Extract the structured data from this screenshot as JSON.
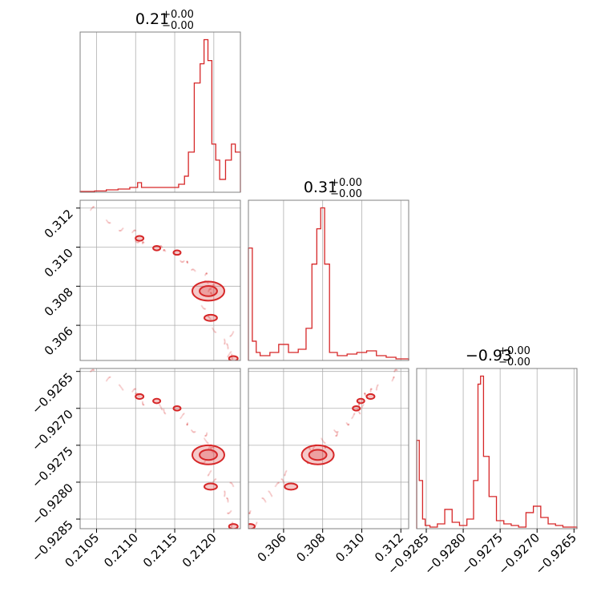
{
  "chart_data": {
    "type": "corner",
    "line_color": "#d62728",
    "grid": true,
    "parameters": [
      {
        "title": "0.21",
        "upper_error": "+0.00",
        "lower_error": "−0.00",
        "range": [
          0.21029,
          0.21234
        ],
        "ticks": [
          0.2105,
          0.211,
          0.2115,
          0.212
        ],
        "tick_labels": [
          "0.2105",
          "0.2110",
          "0.2115",
          "0.2120"
        ]
      },
      {
        "title": "0.31",
        "upper_error": "+0.00",
        "lower_error": "−0.00",
        "range": [
          0.3042,
          0.3124
        ],
        "ticks": [
          0.306,
          0.308,
          0.31,
          0.312
        ],
        "tick_labels": [
          "0.306",
          "0.308",
          "0.310",
          "0.312"
        ]
      },
      {
        "title": "−0.93",
        "upper_error": "+0.00",
        "lower_error": "−0.00",
        "range": [
          -0.92863,
          -0.92646
        ],
        "ticks": [
          -0.9285,
          -0.928,
          -0.9275,
          -0.927,
          -0.9265
        ],
        "tick_labels": [
          "−0.9285",
          "−0.9280",
          "−0.9275",
          "−0.9270",
          "−0.9265"
        ]
      }
    ],
    "histograms": [
      {
        "param": 0,
        "x": [
          0.2104,
          0.21055,
          0.2107,
          0.21085,
          0.211,
          0.21105,
          0.2111,
          0.2112,
          0.2113,
          0.2114,
          0.2115,
          0.2116,
          0.21165,
          0.2117,
          0.2118,
          0.21185,
          0.2119,
          0.21195,
          0.212,
          0.21205,
          0.2121,
          0.2122,
          0.21225,
          0.2123
        ],
        "y": [
          0.005,
          0.008,
          0.015,
          0.02,
          0.03,
          0.06,
          0.03,
          0.03,
          0.03,
          0.03,
          0.03,
          0.05,
          0.1,
          0.25,
          0.68,
          0.8,
          0.95,
          0.82,
          0.3,
          0.2,
          0.08,
          0.2,
          0.3,
          0.25
        ]
      },
      {
        "param": 1,
        "x": [
          0.3043,
          0.3045,
          0.3047,
          0.3049,
          0.3051,
          0.3055,
          0.306,
          0.3065,
          0.307,
          0.3073,
          0.3076,
          0.3078,
          0.308,
          0.3082,
          0.3085,
          0.309,
          0.3095,
          0.31,
          0.3105,
          0.311,
          0.3115,
          0.312
        ],
        "y": [
          0.7,
          0.12,
          0.05,
          0.03,
          0.03,
          0.05,
          0.1,
          0.05,
          0.07,
          0.2,
          0.6,
          0.82,
          0.95,
          0.6,
          0.05,
          0.03,
          0.04,
          0.05,
          0.06,
          0.03,
          0.02,
          0.01
        ]
      },
      {
        "param": 2,
        "x": [
          -0.92862,
          -0.92857,
          -0.92853,
          -0.9285,
          -0.9284,
          -0.9283,
          -0.9282,
          -0.9281,
          -0.928,
          -0.9279,
          -0.92782,
          -0.92778,
          -0.92775,
          -0.9277,
          -0.9276,
          -0.9275,
          -0.9274,
          -0.9273,
          -0.9272,
          -0.9271,
          -0.927,
          -0.9269,
          -0.9268,
          -0.9267,
          -0.9266,
          -0.92647
        ],
        "y": [
          0.55,
          0.3,
          0.06,
          0.02,
          0.01,
          0.03,
          0.12,
          0.04,
          0.02,
          0.06,
          0.3,
          0.9,
          0.95,
          0.45,
          0.2,
          0.05,
          0.03,
          0.02,
          0.01,
          0.1,
          0.14,
          0.07,
          0.03,
          0.02,
          0.01,
          0.01
        ]
      }
    ],
    "scatter_samples": [
      [
        0.21042,
        0.3119,
        -0.92652
      ],
      [
        0.21065,
        0.3114,
        -0.92662
      ],
      [
        0.21082,
        0.311,
        -0.92672
      ],
      [
        0.21095,
        0.3107,
        -0.92678
      ],
      [
        0.21103,
        0.3104,
        -0.92684
      ],
      [
        0.21115,
        0.3101,
        -0.92691
      ],
      [
        0.21128,
        0.3099,
        -0.92698
      ],
      [
        0.21142,
        0.3097,
        -0.92703
      ],
      [
        0.21158,
        0.3094,
        -0.92711
      ],
      [
        0.21172,
        0.3091,
        -0.92718
      ],
      [
        0.21185,
        0.3085,
        -0.92733
      ],
      [
        0.2119,
        0.3081,
        -0.92743
      ],
      [
        0.21196,
        0.3079,
        -0.92749
      ],
      [
        0.21199,
        0.3077,
        -0.92753
      ],
      [
        0.21202,
        0.3075,
        -0.92758
      ],
      [
        0.21188,
        0.307,
        -0.9277
      ],
      [
        0.21198,
        0.3063,
        -0.92787
      ],
      [
        0.21203,
        0.3058,
        -0.928
      ],
      [
        0.21208,
        0.3052,
        -0.92816
      ],
      [
        0.21212,
        0.3049,
        -0.92826
      ],
      [
        0.21222,
        0.3045,
        -0.92838
      ],
      [
        0.21229,
        0.3044,
        -0.92858
      ],
      [
        0.2122,
        0.3056,
        -0.92805
      ],
      [
        0.21175,
        0.3087,
        -0.92728
      ]
    ],
    "contours": [
      {
        "x": 0.21193,
        "y": 0.30775,
        "z": -0.92763,
        "level": 1,
        "rx": 0.9,
        "ry": 0.8
      },
      {
        "x": 0.21193,
        "y": 0.30775,
        "z": -0.92763,
        "level": 2,
        "rx": 1.0,
        "ry": 1.0
      },
      {
        "x": 0.21196,
        "y": 0.30638,
        "z": -0.92806,
        "level": 1,
        "rx": 0.6,
        "ry": 0.35
      },
      {
        "x": 0.21105,
        "y": 0.31045,
        "z": -0.92684,
        "level": 1,
        "rx": 0.3,
        "ry": 0.2
      },
      {
        "x": 0.21127,
        "y": 0.30995,
        "z": -0.9269,
        "level": 1,
        "rx": 0.25,
        "ry": 0.15
      },
      {
        "x": 0.21153,
        "y": 0.30972,
        "z": -0.927,
        "level": 1,
        "rx": 0.25,
        "ry": 0.15
      },
      {
        "x": 0.21225,
        "y": 0.3043,
        "z": -0.9286,
        "level": 1,
        "rx": 0.35,
        "ry": 0.2
      }
    ]
  }
}
